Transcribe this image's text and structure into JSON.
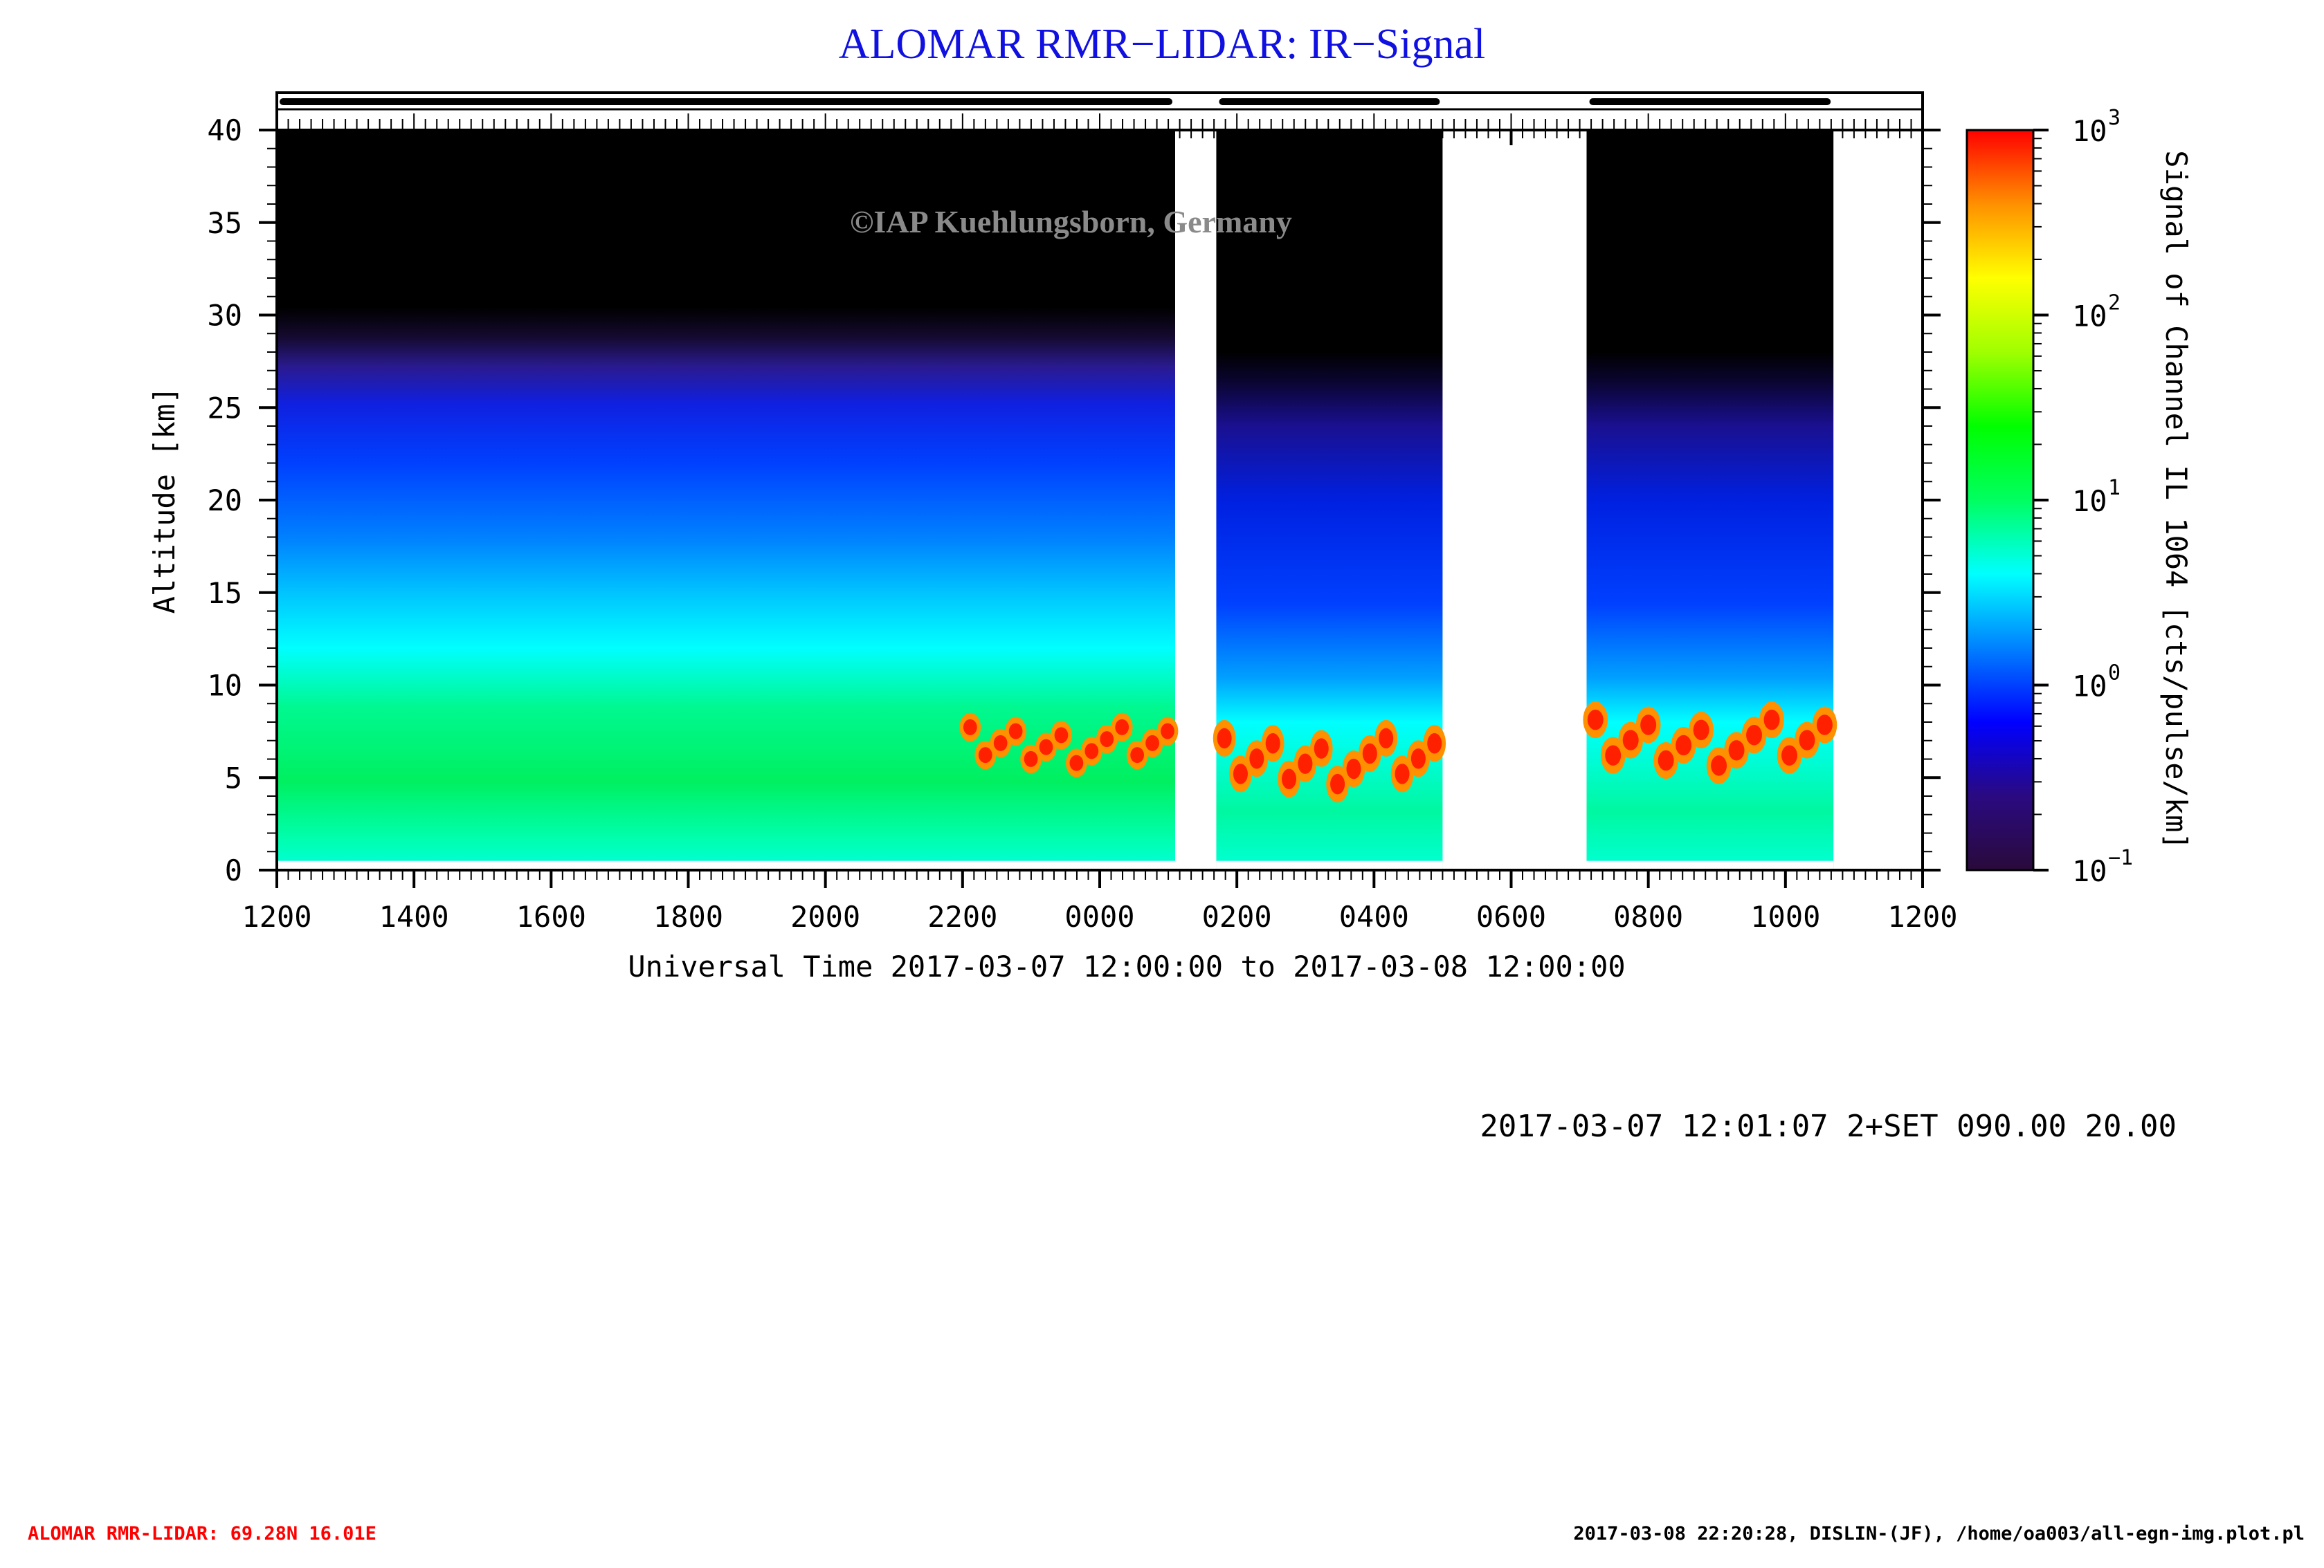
{
  "title": "ALOMAR RMR−LIDAR: IR−Signal",
  "watermark": "©IAP Kuehlungsborn, Germany",
  "run_info": "2017-03-07 12:01:07 2+SET 090.00 20.00",
  "footer_left": "ALOMAR RMR-LIDAR: 69.28N 16.01E",
  "footer_right": "2017-03-08 22:20:28, DISLIN-(JF), /home/oa003/all-egn-img.plot.pl",
  "colors": {
    "title": "#1010e0",
    "footer_left": "#ff0000",
    "watermark": "#8a8a8a",
    "colorbar": [
      "#2a0a3a",
      "#2a0a80",
      "#0000ff",
      "#0080ff",
      "#00ffff",
      "#00ff60",
      "#00ff00",
      "#a0ff00",
      "#ffff00",
      "#ff9000",
      "#ff0000"
    ]
  },
  "chart_data": {
    "type": "heatmap",
    "xlabel": "Universal Time 2017-03-07 12:00:00 to 2017-03-08 12:00:00",
    "ylabel": "Altitude [km]",
    "xlim": [
      0,
      24
    ],
    "ylim": [
      0,
      40
    ],
    "x_ticks": [
      {
        "h": 0,
        "label": "1200"
      },
      {
        "h": 2,
        "label": "1400"
      },
      {
        "h": 4,
        "label": "1600"
      },
      {
        "h": 6,
        "label": "1800"
      },
      {
        "h": 8,
        "label": "2000"
      },
      {
        "h": 10,
        "label": "2200"
      },
      {
        "h": 12,
        "label": "0000"
      },
      {
        "h": 14,
        "label": "0200"
      },
      {
        "h": 16,
        "label": "0400"
      },
      {
        "h": 18,
        "label": "0600"
      },
      {
        "h": 20,
        "label": "0800"
      },
      {
        "h": 22,
        "label": "1000"
      },
      {
        "h": 24,
        "label": "1200"
      }
    ],
    "y_ticks": [
      0,
      5,
      10,
      15,
      20,
      25,
      30,
      35,
      40
    ],
    "colorbar": {
      "label": "Signal of Channel IL 1064 [cts/pulse/km]",
      "scale": "log",
      "range": [
        0.1,
        1000
      ],
      "ticks": [
        {
          "value": 0.1,
          "base": "10",
          "exp": "−1"
        },
        {
          "value": 1,
          "base": "10",
          "exp": "0"
        },
        {
          "value": 10,
          "base": "10",
          "exp": "1"
        },
        {
          "value": 100,
          "base": "10",
          "exp": "2"
        },
        {
          "value": 1000,
          "base": "10",
          "exp": "3"
        }
      ]
    },
    "data_intervals_hours": [
      [
        0,
        13.1
      ],
      [
        13.7,
        17.0
      ],
      [
        19.1,
        22.7
      ]
    ],
    "cloud_features": [
      {
        "t_start": 10.0,
        "t_end": 13.1,
        "alt_min": 4.5,
        "alt_max": 8.8,
        "signal": 500
      },
      {
        "t_start": 13.7,
        "t_end": 17.0,
        "alt_min": 3.0,
        "alt_max": 8.5,
        "signal": 500
      },
      {
        "t_start": 19.1,
        "t_end": 22.7,
        "alt_min": 4.0,
        "alt_max": 9.5,
        "signal": 400
      }
    ]
  }
}
